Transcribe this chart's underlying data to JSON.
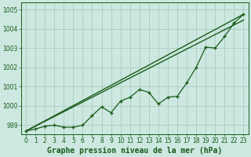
{
  "xlabel": "Graphe pression niveau de la mer (hPa)",
  "bg_color": "#cce8e0",
  "grid_color": "#aaccc4",
  "line_color": "#1a5c1a",
  "x_data": [
    0,
    1,
    2,
    3,
    4,
    5,
    6,
    7,
    8,
    9,
    10,
    11,
    12,
    13,
    14,
    15,
    16,
    17,
    18,
    19,
    20,
    21,
    22,
    23
  ],
  "y_data": [
    998.7,
    998.8,
    998.95,
    999.0,
    998.9,
    998.9,
    999.0,
    999.5,
    999.95,
    999.65,
    1000.25,
    1000.45,
    1000.85,
    1000.7,
    1000.1,
    1000.45,
    1000.5,
    1001.2,
    1002.0,
    1003.05,
    1003.0,
    1003.6,
    1004.3,
    1004.75
  ],
  "trend1_x": [
    0,
    23
  ],
  "trend1_y": [
    998.7,
    1004.75
  ],
  "trend2_x": [
    0,
    23
  ],
  "trend2_y": [
    998.7,
    1004.45
  ],
  "ylim_min": 998.55,
  "ylim_max": 1005.35,
  "xlim_min": -0.5,
  "xlim_max": 23.5,
  "yticks": [
    999,
    1000,
    1001,
    1002,
    1003,
    1004,
    1005
  ],
  "xticks": [
    0,
    1,
    2,
    3,
    4,
    5,
    6,
    7,
    8,
    9,
    10,
    11,
    12,
    13,
    14,
    15,
    16,
    17,
    18,
    19,
    20,
    21,
    22,
    23
  ],
  "tick_fontsize": 5.5,
  "label_fontsize": 7.0
}
